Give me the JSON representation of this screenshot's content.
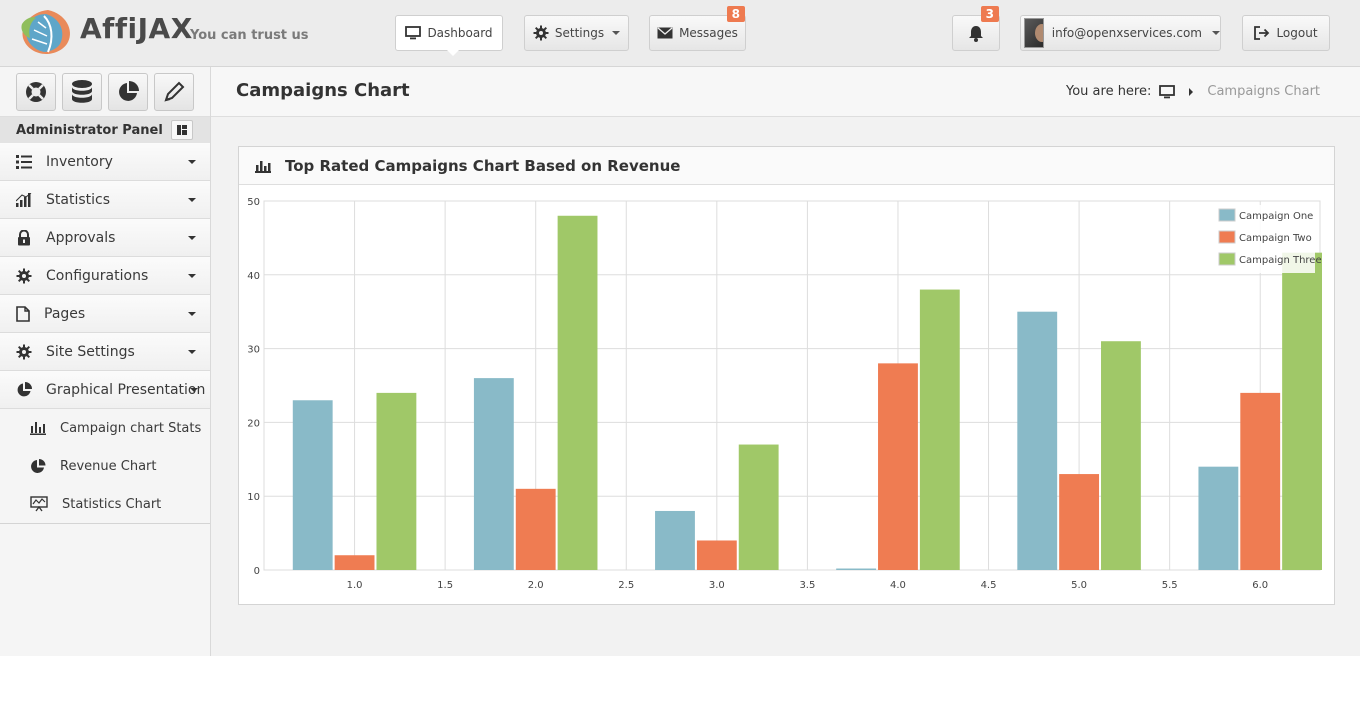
{
  "header": {
    "brand": "AffiJAX",
    "tagline": "You can trust us",
    "dashboard_label": "Dashboard",
    "settings_label": "Settings",
    "messages_label": "Messages",
    "messages_count": "8",
    "notifications_count": "3",
    "user_email": "info@openxservices.com",
    "logout_label": "Logout"
  },
  "sidebar": {
    "panel_title": "Administrator Panel",
    "items": [
      {
        "label": "Inventory",
        "icon": "list-icon"
      },
      {
        "label": "Statistics",
        "icon": "signal-icon"
      },
      {
        "label": "Approvals",
        "icon": "lock-icon"
      },
      {
        "label": "Configurations",
        "icon": "gear-icon"
      },
      {
        "label": "Pages",
        "icon": "file-icon"
      },
      {
        "label": "Site Settings",
        "icon": "gear-icon"
      },
      {
        "label": "Graphical Presentation",
        "icon": "pie-chart-icon"
      }
    ],
    "subitems": [
      {
        "label": "Campaign chart Stats",
        "icon": "bar-chart-icon"
      },
      {
        "label": "Revenue Chart",
        "icon": "pie-chart-icon"
      },
      {
        "label": "Statistics Chart",
        "icon": "presentation-icon"
      }
    ]
  },
  "page": {
    "title": "Campaigns Chart",
    "breadcrumb_prefix": "You are here:",
    "breadcrumb_current": "Campaigns Chart"
  },
  "card": {
    "title": "Top Rated Campaigns Chart Based on Revenue"
  },
  "colors": {
    "series1": "#89bac8",
    "series2": "#ef7c52",
    "series3": "#a0c868",
    "accent_badge": "#ee7a50"
  },
  "chart_data": {
    "type": "bar",
    "x": [
      1,
      2,
      3,
      4,
      5,
      6
    ],
    "xticks": [
      "1.0",
      "1.5",
      "2.0",
      "2.5",
      "3.0",
      "3.5",
      "4.0",
      "4.5",
      "5.0",
      "5.5",
      "6.0"
    ],
    "yticks": [
      "0",
      "10",
      "20",
      "30",
      "40",
      "50"
    ],
    "xlim": [
      0.5,
      6.33
    ],
    "ylim": [
      0,
      50
    ],
    "grid": true,
    "legend_position": "top-right",
    "series": [
      {
        "name": "Campaign One",
        "values": [
          23,
          26,
          8,
          0.2,
          35,
          14
        ]
      },
      {
        "name": "Campaign Two",
        "values": [
          2,
          11,
          4,
          28,
          13,
          24
        ]
      },
      {
        "name": "Campaign Three",
        "values": [
          24,
          48,
          17,
          38,
          31,
          43
        ]
      }
    ]
  }
}
